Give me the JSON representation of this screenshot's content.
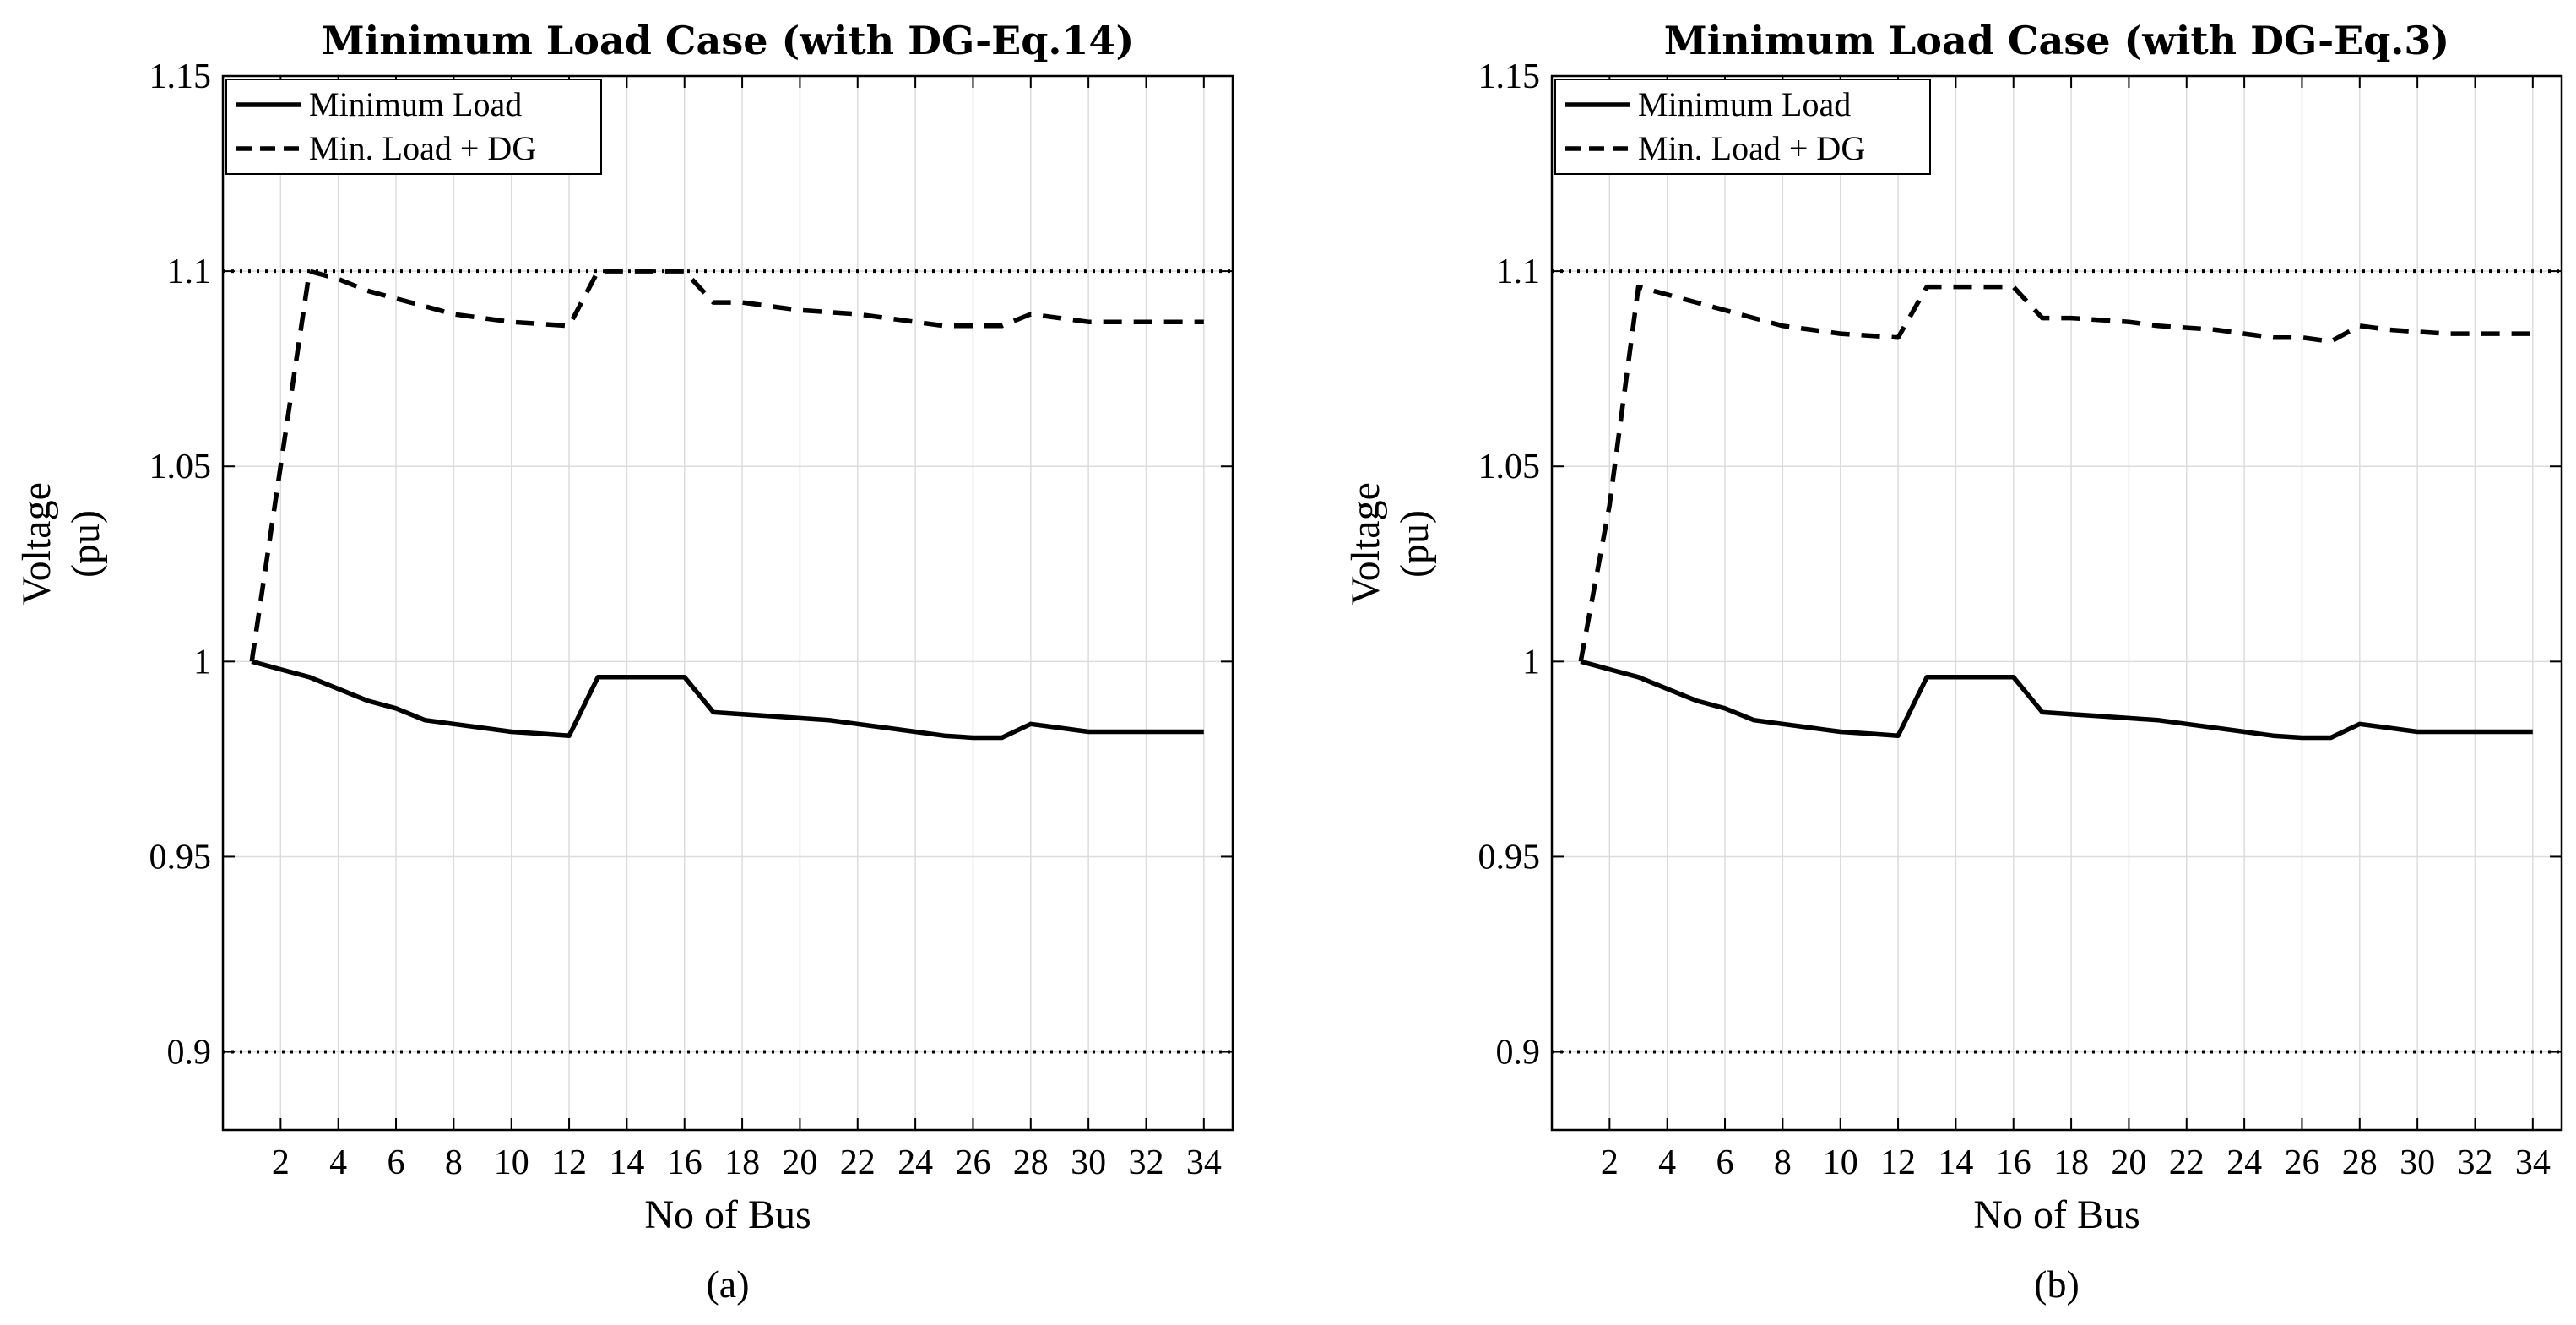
{
  "chart_data": [
    {
      "type": "line",
      "title": "Minimum Load Case (with DG-Eq.14)",
      "caption": "(a)",
      "xlabel": "No of Bus",
      "ylabel": [
        "Voltage",
        "(pu)"
      ],
      "xlim": [
        0,
        35
      ],
      "ylim": [
        0.88,
        1.15
      ],
      "xticks": [
        2,
        4,
        6,
        8,
        10,
        12,
        14,
        16,
        18,
        20,
        22,
        24,
        26,
        28,
        30,
        32,
        34
      ],
      "yticks": [
        0.9,
        0.95,
        1,
        1.05,
        1.1,
        1.15
      ],
      "ytick_labels": [
        "0.9",
        "0.95",
        "1",
        "1.05",
        "1.1",
        "1.15"
      ],
      "grid": true,
      "legend_position": "top-left",
      "limits": [
        0.9,
        1.1
      ],
      "x": [
        1,
        2,
        3,
        4,
        5,
        6,
        7,
        8,
        9,
        10,
        11,
        12,
        13,
        14,
        15,
        16,
        17,
        18,
        19,
        20,
        21,
        22,
        23,
        24,
        25,
        26,
        27,
        28,
        29,
        30,
        31,
        32,
        33,
        34
      ],
      "series": [
        {
          "name": "Minimum Load",
          "style": "solid",
          "values": [
            1.0,
            0.998,
            0.996,
            0.993,
            0.99,
            0.988,
            0.985,
            0.984,
            0.983,
            0.982,
            0.9815,
            0.981,
            0.996,
            0.996,
            0.996,
            0.996,
            0.987,
            0.9865,
            0.986,
            0.9855,
            0.985,
            0.984,
            0.983,
            0.982,
            0.981,
            0.9805,
            0.9805,
            0.984,
            0.983,
            0.982,
            0.982,
            0.982,
            0.982,
            0.982
          ]
        },
        {
          "name": "Min. Load + DG",
          "style": "dashed",
          "values": [
            1.0,
            1.05,
            1.1,
            1.098,
            1.095,
            1.093,
            1.091,
            1.089,
            1.088,
            1.087,
            1.0865,
            1.086,
            1.1,
            1.1,
            1.1,
            1.1,
            1.092,
            1.092,
            1.091,
            1.09,
            1.0895,
            1.089,
            1.088,
            1.087,
            1.086,
            1.086,
            1.086,
            1.089,
            1.088,
            1.087,
            1.087,
            1.087,
            1.087,
            1.087
          ]
        }
      ]
    },
    {
      "type": "line",
      "title": "Minimum Load Case  (with DG-Eq.3)",
      "caption": "(b)",
      "xlabel": "No of Bus",
      "ylabel": [
        "Voltage",
        "(pu)"
      ],
      "xlim": [
        0,
        35
      ],
      "ylim": [
        0.88,
        1.15
      ],
      "xticks": [
        2,
        4,
        6,
        8,
        10,
        12,
        14,
        16,
        18,
        20,
        22,
        24,
        26,
        28,
        30,
        32,
        34
      ],
      "yticks": [
        0.9,
        0.95,
        1,
        1.05,
        1.1,
        1.15
      ],
      "ytick_labels": [
        "0.9",
        "0.95",
        "1",
        "1.05",
        "1.1",
        "1.15"
      ],
      "grid": true,
      "legend_position": "top-left",
      "limits": [
        0.9,
        1.1
      ],
      "x": [
        1,
        2,
        3,
        4,
        5,
        6,
        7,
        8,
        9,
        10,
        11,
        12,
        13,
        14,
        15,
        16,
        17,
        18,
        19,
        20,
        21,
        22,
        23,
        24,
        25,
        26,
        27,
        28,
        29,
        30,
        31,
        32,
        33,
        34
      ],
      "series": [
        {
          "name": "Minimum Load",
          "style": "solid",
          "values": [
            1.0,
            0.998,
            0.996,
            0.993,
            0.99,
            0.988,
            0.985,
            0.984,
            0.983,
            0.982,
            0.9815,
            0.981,
            0.996,
            0.996,
            0.996,
            0.996,
            0.987,
            0.9865,
            0.986,
            0.9855,
            0.985,
            0.984,
            0.983,
            0.982,
            0.981,
            0.9805,
            0.9805,
            0.984,
            0.983,
            0.982,
            0.982,
            0.982,
            0.982,
            0.982
          ]
        },
        {
          "name": "Min. Load + DG",
          "style": "dashed",
          "values": [
            1.0,
            1.04,
            1.096,
            1.094,
            1.092,
            1.09,
            1.088,
            1.086,
            1.085,
            1.084,
            1.0835,
            1.083,
            1.096,
            1.096,
            1.096,
            1.096,
            1.088,
            1.088,
            1.0875,
            1.087,
            1.086,
            1.0855,
            1.085,
            1.084,
            1.083,
            1.083,
            1.082,
            1.086,
            1.085,
            1.0845,
            1.084,
            1.084,
            1.084,
            1.084
          ]
        }
      ]
    }
  ]
}
